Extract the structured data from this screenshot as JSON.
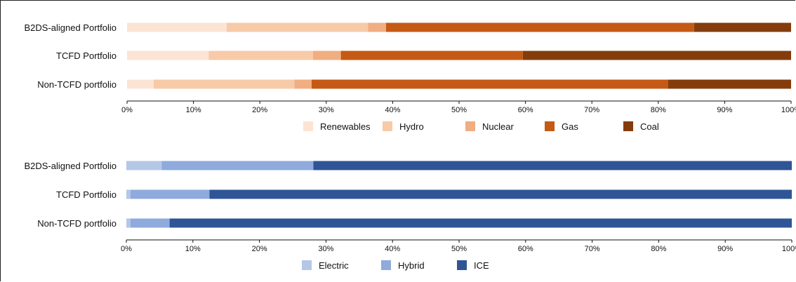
{
  "chart_data": [
    {
      "type": "bar",
      "stacked": true,
      "orientation": "horizontal",
      "categories": [
        "B2DS-aligned Portfolio",
        "TCFD Portfolio",
        "Non-TCFD portfolio"
      ],
      "series": [
        {
          "name": "Renewables",
          "values": [
            15,
            12.3,
            4
          ],
          "color": "#fce4d5"
        },
        {
          "name": "Hydro",
          "values": [
            21.3,
            15.7,
            21.2
          ],
          "color": "#f7caa8"
        },
        {
          "name": "Nuclear",
          "values": [
            2.7,
            4.2,
            2.6
          ],
          "color": "#f0ae82"
        },
        {
          "name": "Gas",
          "values": [
            46.4,
            27.4,
            53.7
          ],
          "color": "#c55a15"
        },
        {
          "name": "Coal",
          "values": [
            14.6,
            40.4,
            18.5
          ],
          "color": "#843c0c"
        }
      ],
      "xlim": [
        0,
        100
      ],
      "xticks": [
        "0%",
        "10%",
        "20%",
        "30%",
        "40%",
        "50%",
        "60%",
        "70%",
        "80%",
        "90%",
        "100%"
      ],
      "legend_position": "bottom",
      "grid": false
    },
    {
      "type": "bar",
      "stacked": true,
      "orientation": "horizontal",
      "categories": [
        "B2DS-aligned Portfolio",
        "TCFD Portfolio",
        "Non-TCFD portfolio"
      ],
      "series": [
        {
          "name": "Electric",
          "values": [
            5.3,
            0.6,
            0.6
          ],
          "color": "#b4c7e7"
        },
        {
          "name": "Hybrid",
          "values": [
            22.8,
            11.9,
            5.9
          ],
          "color": "#8faadc"
        },
        {
          "name": "ICE",
          "values": [
            71.9,
            87.5,
            93.5
          ],
          "color": "#2f5597"
        }
      ],
      "xlim": [
        0,
        100
      ],
      "xticks": [
        "0%",
        "10%",
        "20%",
        "30%",
        "40%",
        "50%",
        "60%",
        "70%",
        "80%",
        "90%",
        "100%"
      ],
      "legend_position": "bottom",
      "grid": false
    }
  ]
}
